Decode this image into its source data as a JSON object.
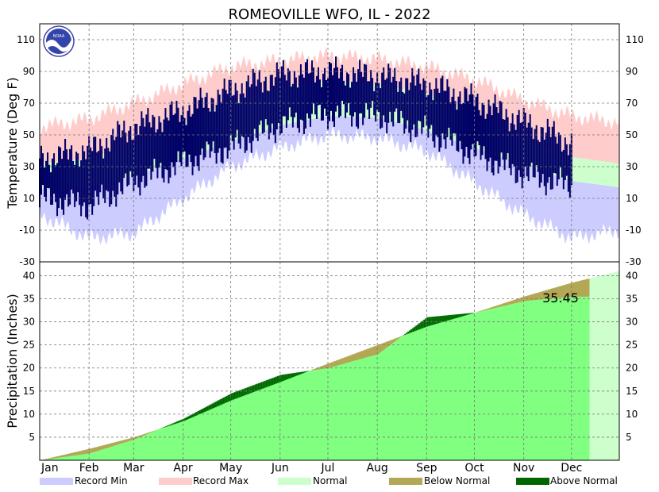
{
  "chart_data": [
    {
      "type": "area",
      "panel": "temperature",
      "title": "ROMEOVILLE  WFO, IL - 2022",
      "ylabel": "Temperature (Deg F)",
      "ylim": [
        -30,
        120
      ],
      "yticks": [
        -30,
        -10,
        10,
        30,
        50,
        70,
        90,
        110
      ],
      "grid": true,
      "months": [
        "Jan",
        "Feb",
        "Mar",
        "Apr",
        "May",
        "Jun",
        "Jul",
        "Aug",
        "Sep",
        "Oct",
        "Nov",
        "Dec"
      ],
      "x_days": [
        1,
        32,
        60,
        91,
        121,
        152,
        182,
        213,
        244,
        274,
        305,
        335,
        365
      ],
      "series": [
        {
          "name": "Record Min",
          "color": "#ccccff",
          "values": [
            0,
            -15,
            -12,
            10,
            30,
            42,
            50,
            48,
            40,
            20,
            0,
            -15,
            -10
          ]
        },
        {
          "name": "Record Max",
          "color": "#ffcccc",
          "values": [
            55,
            60,
            70,
            82,
            93,
            97,
            100,
            98,
            93,
            85,
            72,
            62,
            58
          ]
        },
        {
          "name": "Normal",
          "color": "#ccffcc",
          "normal_low": [
            16,
            18,
            24,
            35,
            46,
            56,
            62,
            61,
            53,
            42,
            31,
            21,
            17
          ],
          "normal_high": [
            32,
            35,
            44,
            58,
            70,
            80,
            84,
            82,
            76,
            63,
            48,
            36,
            32
          ]
        },
        {
          "name": "Observed",
          "color": "#000066",
          "observed_low": [
            10,
            5,
            20,
            32,
            42,
            56,
            63,
            62,
            52,
            38,
            25,
            18
          ],
          "observed_high": [
            35,
            40,
            55,
            65,
            78,
            88,
            90,
            87,
            82,
            72,
            58,
            45
          ]
        }
      ]
    },
    {
      "type": "area",
      "panel": "precipitation",
      "ylabel": "Precipitation (Inches)",
      "ylim": [
        0,
        43
      ],
      "yticks": [
        5,
        10,
        15,
        20,
        25,
        30,
        35,
        40
      ],
      "grid": true,
      "annotation": "35.45",
      "x_days": [
        1,
        32,
        60,
        91,
        121,
        152,
        182,
        213,
        244,
        274,
        305,
        335,
        365
      ],
      "normal_cumulative": [
        0,
        2.5,
        5,
        8.5,
        13,
        17,
        21,
        25,
        29,
        32,
        35.5,
        38.5,
        41
      ],
      "observed_cumulative": [
        0,
        1.5,
        4.5,
        9,
        14.5,
        18.5,
        20,
        23,
        31,
        32,
        34.5,
        35.45
      ]
    }
  ],
  "legend": {
    "record_min": "Record Min",
    "record_max": "Record Max",
    "normal": "Normal",
    "below_normal": "Below Normal",
    "above_normal": "Above Normal"
  },
  "colors": {
    "record_min": "#ccccff",
    "record_max": "#ffcccc",
    "normal": "#ccffcc",
    "observed": "#000066",
    "precip_observed": "#80ff80",
    "below_normal": "#b2a855",
    "above_normal": "#006600"
  },
  "logo": {
    "text": "NOAA"
  }
}
